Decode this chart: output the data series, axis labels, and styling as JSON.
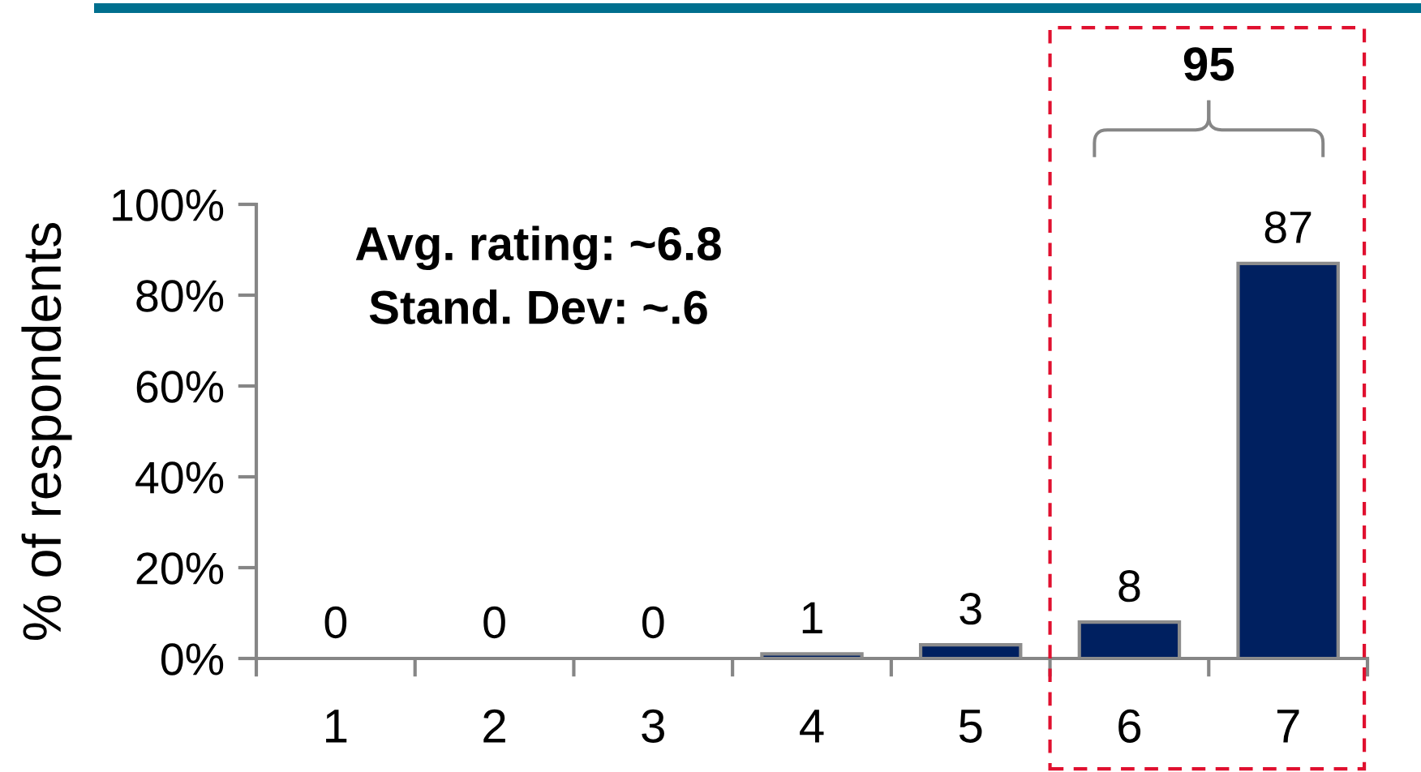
{
  "chart_data": {
    "type": "bar",
    "ylabel": "% of respondents",
    "categories": [
      "1",
      "2",
      "3",
      "4",
      "5",
      "6",
      "7"
    ],
    "values": [
      0,
      0,
      0,
      1,
      3,
      8,
      87
    ],
    "color": "#002060",
    "ylim": [
      0,
      100
    ],
    "yticks": [
      {
        "value": 0,
        "label": "0%"
      },
      {
        "value": 20,
        "label": "20%"
      },
      {
        "value": 40,
        "label": "40%"
      },
      {
        "value": 60,
        "label": "60%"
      },
      {
        "value": 80,
        "label": "80%"
      },
      {
        "value": 100,
        "label": "100%"
      }
    ],
    "data_labels": true,
    "annotations": [
      "Avg. rating: ~6.8",
      "Stand. Dev: ~.6",
      "95"
    ]
  }
}
